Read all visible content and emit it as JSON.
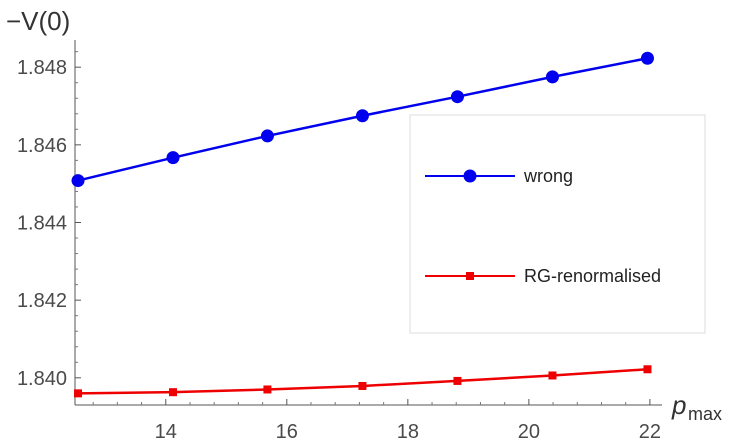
{
  "chart_data": {
    "type": "line",
    "ylabel": "−V(0)",
    "xlabel_main": "p",
    "xlabel_sub": "max",
    "x": [
      12.55,
      14.12,
      15.68,
      17.25,
      18.82,
      20.39,
      21.96
    ],
    "xlim": [
      12.5,
      22.2
    ],
    "ylim": [
      1.8393,
      1.8487
    ],
    "xticks": [
      14,
      16,
      18,
      20,
      22
    ],
    "yticks": [
      1.84,
      1.842,
      1.844,
      1.846,
      1.848
    ],
    "ytick_labels": [
      "1.840",
      "1.842",
      "1.844",
      "1.846",
      "1.848"
    ],
    "grid": false,
    "legend_position": "right",
    "series": [
      {
        "name": "wrong",
        "color": "#0000ee",
        "marker": "circle",
        "values": [
          1.84508,
          1.84567,
          1.84623,
          1.84675,
          1.84724,
          1.84775,
          1.84823
        ]
      },
      {
        "name": "RG-renormalised",
        "color": "#ee0000",
        "marker": "square",
        "values": [
          1.8396,
          1.83963,
          1.8397,
          1.83979,
          1.83992,
          1.84006,
          1.84022
        ]
      }
    ]
  }
}
